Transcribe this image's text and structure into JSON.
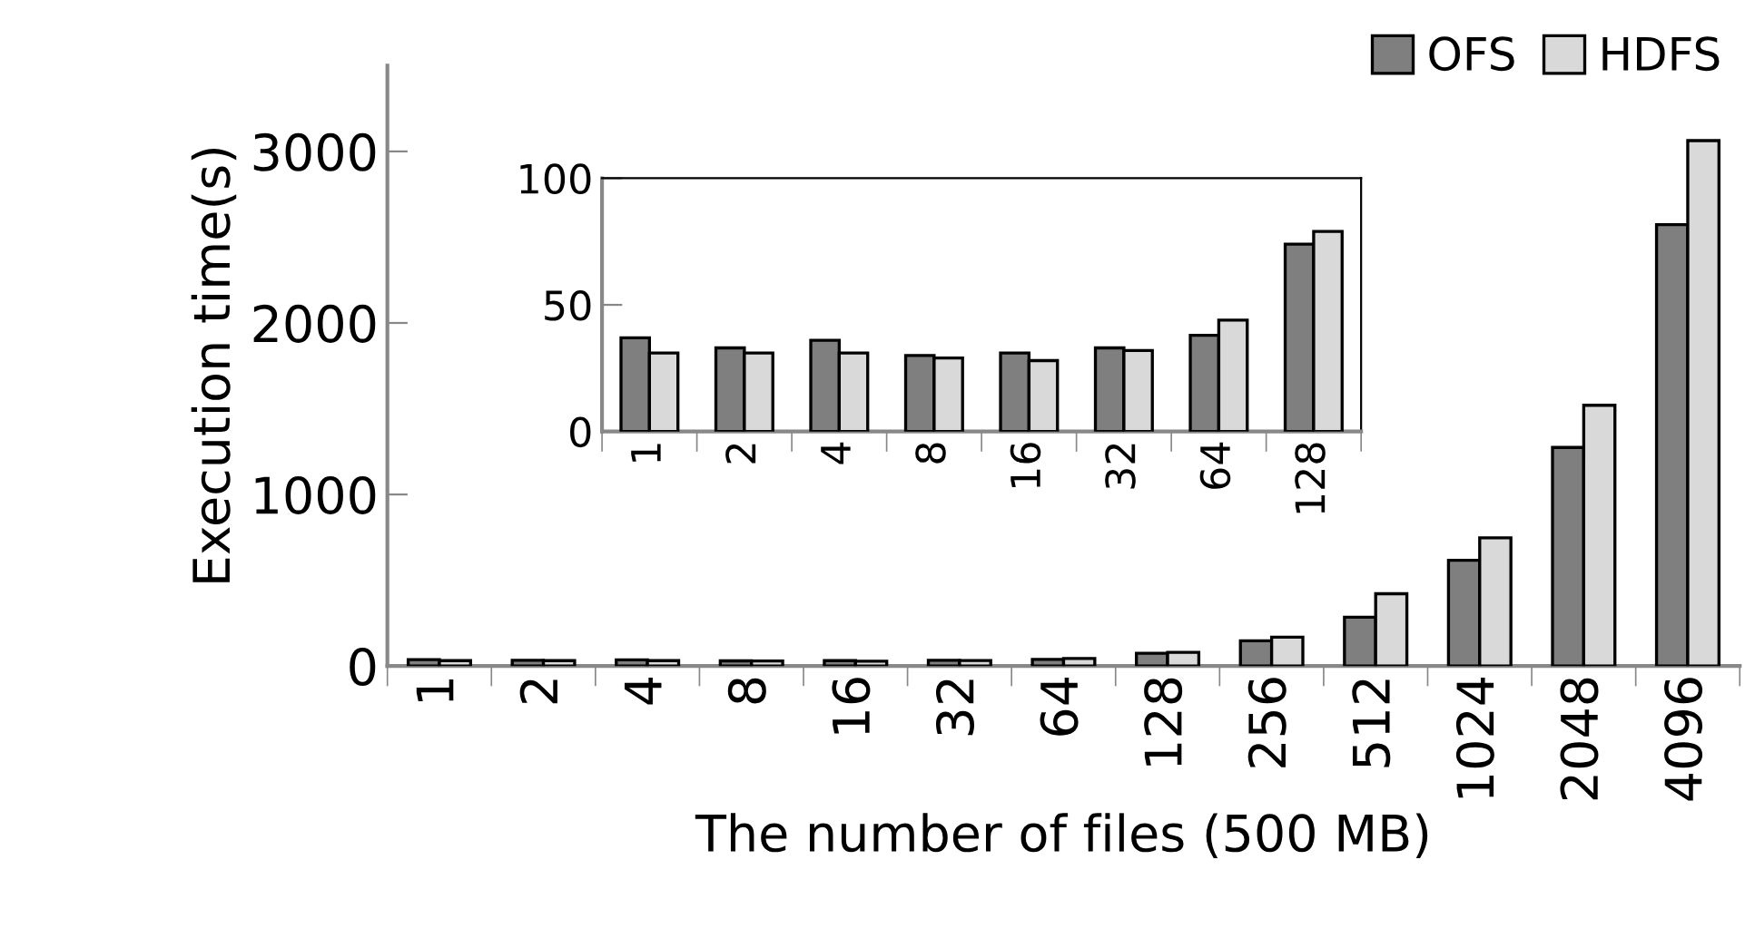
{
  "chart_data": [
    {
      "type": "bar",
      "xlabel": "The number of files (500 MB)",
      "ylabel": "Execution time(s)",
      "categories": [
        "1",
        "2",
        "4",
        "8",
        "16",
        "32",
        "64",
        "128",
        "256",
        "512",
        "1024",
        "2048",
        "4096"
      ],
      "series": [
        {
          "name": "OFS",
          "color": "#7f7f7f",
          "values": [
            37,
            33,
            36,
            30,
            31,
            33,
            38,
            74,
            147,
            284,
            616,
            1274,
            2573
          ]
        },
        {
          "name": "HDFS",
          "color": "#d9d9d9",
          "values": [
            31,
            31,
            31,
            29,
            28,
            32,
            44,
            79,
            168,
            421,
            747,
            1520,
            3063
          ]
        }
      ],
      "ylim": [
        0,
        3500
      ],
      "yticks": [
        0,
        1000,
        2000,
        3000
      ],
      "legend": "top right"
    },
    {
      "type": "bar",
      "categories": [
        "1",
        "2",
        "4",
        "8",
        "16",
        "32",
        "64",
        "128"
      ],
      "series": [
        {
          "color": "#7f7f7f",
          "values": [
            37,
            33,
            36,
            30,
            31,
            33,
            38,
            74
          ]
        },
        {
          "color": "#d9d9d9",
          "values": [
            31,
            31,
            31,
            29,
            28,
            32,
            44,
            79
          ]
        }
      ],
      "ylim": [
        0,
        100
      ],
      "yticks": [
        0,
        50,
        100
      ]
    }
  ]
}
